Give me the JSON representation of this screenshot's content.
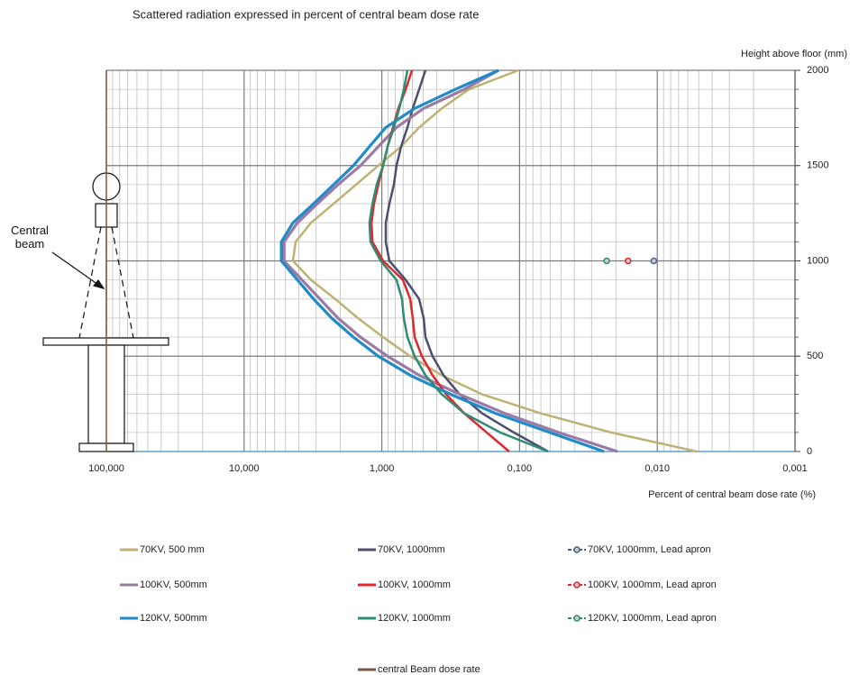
{
  "chart_data": {
    "type": "line",
    "title": "Scattered radiation expressed in percent of central beam dose rate",
    "x_label": "Percent of central beam dose rate  (%)",
    "y_label": "Height above floor (mm)",
    "annotation": "Central beam",
    "x_log": true,
    "xlim": [
      100,
      0.001
    ],
    "xticks": [
      {
        "value": 100,
        "label": "100,000"
      },
      {
        "value": 10,
        "label": "10,000"
      },
      {
        "value": 1,
        "label": "1,000"
      },
      {
        "value": 0.1,
        "label": "0,100"
      },
      {
        "value": 0.01,
        "label": "0,010"
      },
      {
        "value": 0.001,
        "label": "0,001"
      }
    ],
    "ylim": [
      0,
      2000
    ],
    "yticks": [
      0,
      500,
      1000,
      1500,
      2000
    ],
    "grid": true,
    "minor_grid": true,
    "y": [
      0,
      100,
      200,
      300,
      400,
      500,
      600,
      700,
      800,
      900,
      1000,
      1100,
      1200,
      1300,
      1400,
      1500,
      1600,
      1700,
      1800,
      1900,
      2000
    ],
    "series": [
      {
        "name": "70KV, 500 mm",
        "color": "#bdb273",
        "values": [
          0.00516,
          0.0216,
          0.0701,
          0.187,
          0.367,
          0.622,
          0.979,
          1.49,
          2.18,
          3.27,
          4.42,
          4.23,
          3.27,
          2.24,
          1.54,
          1.06,
          0.724,
          0.536,
          0.367,
          0.234,
          0.102
        ]
      },
      {
        "name": "70KV, 1000mm",
        "color": "#4b4f6d",
        "values": [
          0.0621,
          0.11,
          0.187,
          0.272,
          0.356,
          0.428,
          0.482,
          0.497,
          0.536,
          0.671,
          0.881,
          0.936,
          0.936,
          0.881,
          0.817,
          0.782,
          0.724,
          0.652,
          0.596,
          0.536,
          0.482
        ]
      },
      {
        "name": "70KV, 1000mm, Lead apron",
        "color": "#4a5b8c",
        "marker": true,
        "y": [
          1000
        ],
        "values": [
          0.0106
        ]
      },
      {
        "name": "100KV, 500mm",
        "color": "#9b7aa6",
        "values": [
          0.0195,
          0.0519,
          0.128,
          0.272,
          0.536,
          0.908,
          1.43,
          2.08,
          2.81,
          3.8,
          5.14,
          5.14,
          4.1,
          2.94,
          2.08,
          1.43,
          1.06,
          0.782,
          0.497,
          0.252,
          0.142
        ]
      },
      {
        "name": "100KV, 1000mm",
        "color": "#e3262b",
        "values": [
          0.119,
          0.173,
          0.252,
          0.341,
          0.428,
          0.512,
          0.578,
          0.596,
          0.622,
          0.703,
          0.979,
          1.17,
          1.19,
          1.14,
          1.06,
          0.979,
          0.908,
          0.83,
          0.759,
          0.671,
          0.604
        ]
      },
      {
        "name": "100KV, 1000mm, Lead apron",
        "color": "#e3262b",
        "marker": true,
        "y": [
          1000
        ],
        "values": [
          0.0163
        ]
      },
      {
        "name": "120KV, 500mm",
        "color": "#1f8bc9",
        "values": [
          0.0244,
          0.0603,
          0.149,
          0.316,
          0.622,
          1.06,
          1.61,
          2.31,
          3.13,
          4.1,
          5.37,
          5.37,
          4.42,
          3.13,
          2.24,
          1.61,
          1.23,
          0.936,
          0.578,
          0.293,
          0.142
        ]
      },
      {
        "name": "120KV, 1000mm",
        "color": "#2e8b74",
        "values": [
          0.0621,
          0.138,
          0.252,
          0.367,
          0.482,
          0.578,
          0.652,
          0.692,
          0.713,
          0.782,
          1.02,
          1.21,
          1.23,
          1.17,
          1.09,
          0.979,
          0.908,
          0.817,
          0.747,
          0.692,
          0.652
        ]
      },
      {
        "name": "120KV, 1000mm, Lead apron",
        "color": "#2e8b74",
        "marker": true,
        "y": [
          1000
        ],
        "values": [
          0.0233
        ]
      },
      {
        "name": "central Beam dose rate",
        "color": "#7a5545",
        "y": [
          0,
          2000
        ],
        "values": [
          100,
          100
        ]
      }
    ]
  }
}
